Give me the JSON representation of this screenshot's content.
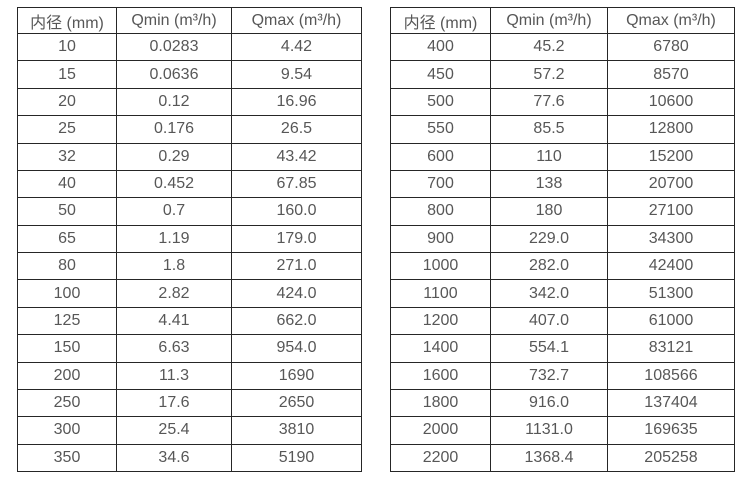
{
  "page": {
    "background_color": "#ffffff",
    "border_color": "#262626",
    "text_color": "#575757"
  },
  "left_table": {
    "headers": [
      "内径 (mm)",
      "Qmin (m³/h)",
      "Qmax (m³/h)"
    ],
    "rows": [
      [
        "10",
        "0.0283",
        "4.42"
      ],
      [
        "15",
        "0.0636",
        "9.54"
      ],
      [
        "20",
        "0.12",
        "16.96"
      ],
      [
        "25",
        "0.176",
        "26.5"
      ],
      [
        "32",
        "0.29",
        "43.42"
      ],
      [
        "40",
        "0.452",
        "67.85"
      ],
      [
        "50",
        "0.7",
        "160.0"
      ],
      [
        "65",
        "1.19",
        "179.0"
      ],
      [
        "80",
        "1.8",
        "271.0"
      ],
      [
        "100",
        "2.82",
        "424.0"
      ],
      [
        "125",
        "4.41",
        "662.0"
      ],
      [
        "150",
        "6.63",
        "954.0"
      ],
      [
        "200",
        "11.3",
        "1690"
      ],
      [
        "250",
        "17.6",
        "2650"
      ],
      [
        "300",
        "25.4",
        "3810"
      ],
      [
        "350",
        "34.6",
        "5190"
      ]
    ]
  },
  "right_table": {
    "headers": [
      "内径 (mm)",
      "Qmin (m³/h)",
      "Qmax (m³/h)"
    ],
    "rows": [
      [
        "400",
        "45.2",
        "6780"
      ],
      [
        "450",
        "57.2",
        "8570"
      ],
      [
        "500",
        "77.6",
        "10600"
      ],
      [
        "550",
        "85.5",
        "12800"
      ],
      [
        "600",
        "110",
        "15200"
      ],
      [
        "700",
        "138",
        "20700"
      ],
      [
        "800",
        "180",
        "27100"
      ],
      [
        "900",
        "229.0",
        "34300"
      ],
      [
        "1000",
        "282.0",
        "42400"
      ],
      [
        "1100",
        "342.0",
        "51300"
      ],
      [
        "1200",
        "407.0",
        "61000"
      ],
      [
        "1400",
        "554.1",
        "83121"
      ],
      [
        "1600",
        "732.7",
        "108566"
      ],
      [
        "1800",
        "916.0",
        "137404"
      ],
      [
        "2000",
        "1131.0",
        "169635"
      ],
      [
        "2200",
        "1368.4",
        "205258"
      ]
    ]
  },
  "chart_data": [
    {
      "type": "table",
      "title": "",
      "columns": [
        "内径 (mm)",
        "Qmin (m³/h)",
        "Qmax (m³/h)"
      ],
      "rows": [
        [
          10,
          0.0283,
          4.42
        ],
        [
          15,
          0.0636,
          9.54
        ],
        [
          20,
          0.12,
          16.96
        ],
        [
          25,
          0.176,
          26.5
        ],
        [
          32,
          0.29,
          43.42
        ],
        [
          40,
          0.452,
          67.85
        ],
        [
          50,
          0.7,
          160.0
        ],
        [
          65,
          1.19,
          179.0
        ],
        [
          80,
          1.8,
          271.0
        ],
        [
          100,
          2.82,
          424.0
        ],
        [
          125,
          4.41,
          662.0
        ],
        [
          150,
          6.63,
          954.0
        ],
        [
          200,
          11.3,
          1690
        ],
        [
          250,
          17.6,
          2650
        ],
        [
          300,
          25.4,
          3810
        ],
        [
          350,
          34.6,
          5190
        ]
      ]
    },
    {
      "type": "table",
      "title": "",
      "columns": [
        "内径 (mm)",
        "Qmin (m³/h)",
        "Qmax (m³/h)"
      ],
      "rows": [
        [
          400,
          45.2,
          6780
        ],
        [
          450,
          57.2,
          8570
        ],
        [
          500,
          77.6,
          10600
        ],
        [
          550,
          85.5,
          12800
        ],
        [
          600,
          110,
          15200
        ],
        [
          700,
          138,
          20700
        ],
        [
          800,
          180,
          27100
        ],
        [
          900,
          229.0,
          34300
        ],
        [
          1000,
          282.0,
          42400
        ],
        [
          1100,
          342.0,
          51300
        ],
        [
          1200,
          407.0,
          61000
        ],
        [
          1400,
          554.1,
          83121
        ],
        [
          1600,
          732.7,
          108566
        ],
        [
          1800,
          916.0,
          137404
        ],
        [
          2000,
          1131.0,
          169635
        ],
        [
          2200,
          1368.4,
          205258
        ]
      ]
    }
  ]
}
